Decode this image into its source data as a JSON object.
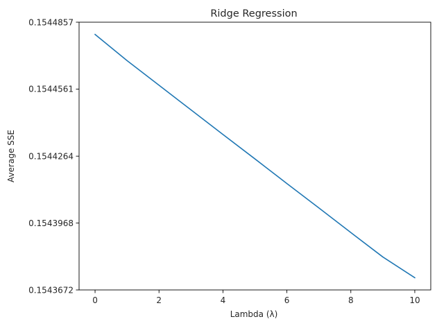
{
  "chart_data": {
    "type": "line",
    "title": "Ridge Regression",
    "xlabel": "Lambda (λ)",
    "ylabel": "Average SSE",
    "xlim": [
      -0.5,
      10.5
    ],
    "ylim": [
      0.1543672,
      0.1544857
    ],
    "xticks": [
      0,
      2,
      4,
      6,
      8,
      10
    ],
    "yticks": [
      0.1543672,
      0.1543968,
      0.1544264,
      0.1544561,
      0.1544857
    ],
    "ytick_labels": [
      "0.1543672",
      "0.1543968",
      "0.1544264",
      "0.1544561",
      "0.1544857"
    ],
    "grid": false,
    "series": [
      {
        "color": "#1f77b4",
        "x": [
          0,
          1,
          2,
          3,
          4,
          5,
          6,
          7,
          8,
          9,
          10
        ],
        "y": [
          0.1544803,
          0.1544687,
          0.1544578,
          0.1544469,
          0.154436,
          0.1544252,
          0.1544143,
          0.1544035,
          0.1543926,
          0.1543818,
          0.1543726
        ]
      }
    ]
  }
}
